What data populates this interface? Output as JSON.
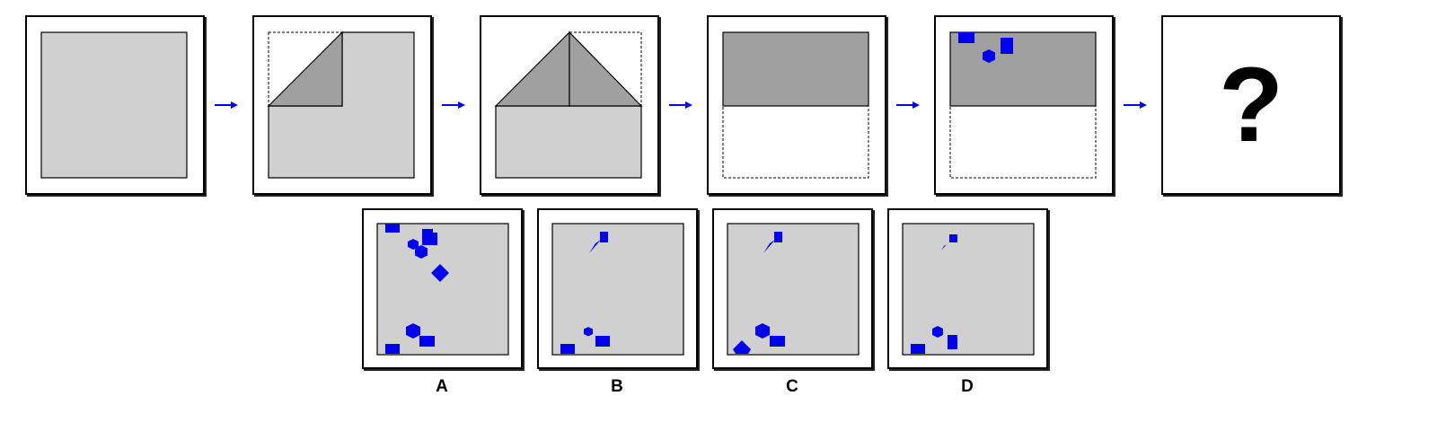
{
  "colors": {
    "paper": "#d0d0d0",
    "folded_flap": "#a0a0a0",
    "hole": "#0000ee",
    "arrow": "#0000ee",
    "frame_border": "#000000"
  },
  "question_mark": "?",
  "steps": [
    {
      "name": "unfolded-square"
    },
    {
      "name": "fold-top-left-corner"
    },
    {
      "name": "fold-top-right-corner"
    },
    {
      "name": "fold-top-half-down"
    },
    {
      "name": "punch-holes"
    },
    {
      "name": "result-unknown"
    }
  ],
  "options": [
    {
      "label": "A"
    },
    {
      "label": "B"
    },
    {
      "label": "C"
    },
    {
      "label": "D"
    }
  ]
}
